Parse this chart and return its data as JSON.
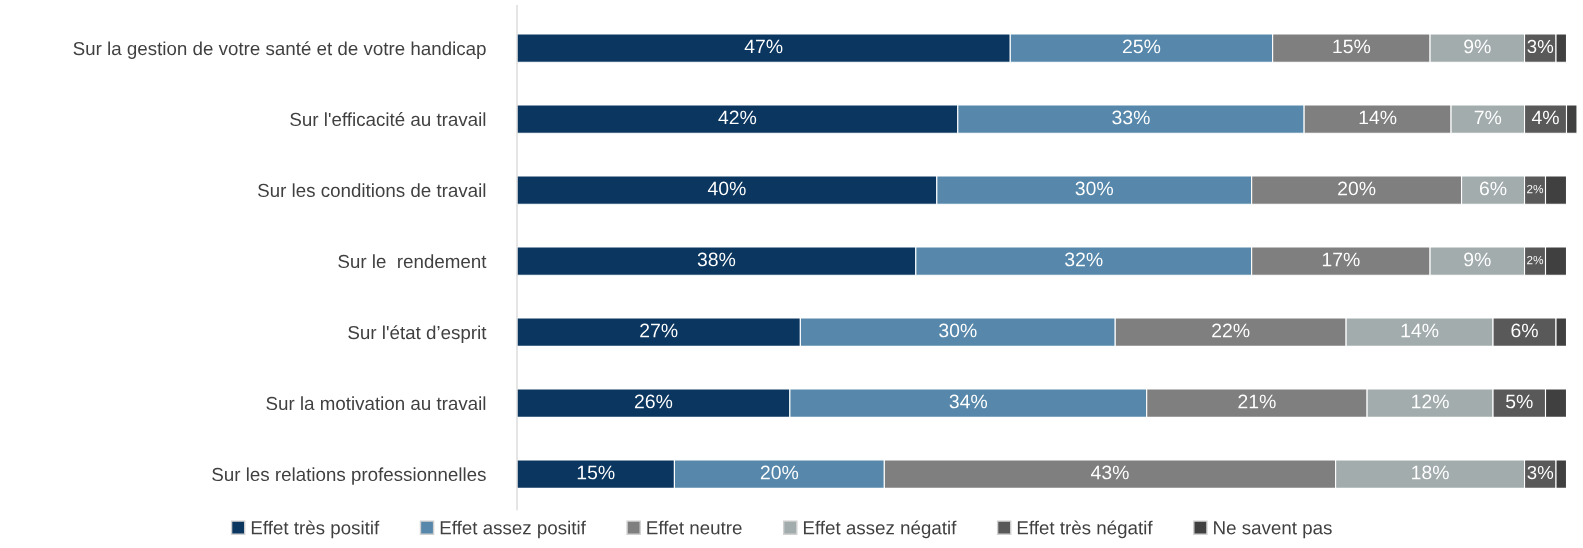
{
  "chart_data": {
    "type": "bar",
    "orientation": "horizontal",
    "stacked": true,
    "categories": [
      "Sur la gestion de votre santé et de votre handicap",
      "Sur l'efficacité au travail",
      "Sur les conditions de travail",
      "Sur le  rendement",
      "Sur l'état d’esprit",
      "Sur la motivation au travail",
      "Sur les relations professionnelles"
    ],
    "series": [
      {
        "name": "Effet très positif",
        "color": "#0b3660",
        "values": [
          47,
          42,
          40,
          38,
          27,
          26,
          15
        ],
        "value_labels": [
          "47%",
          "42%",
          "40%",
          "38%",
          "27%",
          "26%",
          "15%"
        ]
      },
      {
        "name": "Effet assez positif",
        "color": "#5788ab",
        "values": [
          25,
          33,
          30,
          32,
          30,
          34,
          20
        ],
        "value_labels": [
          "25%",
          "33%",
          "30%",
          "32%",
          "30%",
          "34%",
          "20%"
        ]
      },
      {
        "name": "Effet neutre",
        "color": "#7f7f7f",
        "values": [
          15,
          14,
          20,
          17,
          22,
          21,
          43
        ],
        "value_labels": [
          "15%",
          "14%",
          "20%",
          "17%",
          "22%",
          "21%",
          "43%"
        ]
      },
      {
        "name": "Effet assez négatif",
        "color": "#a3acad",
        "values": [
          9,
          7,
          6,
          9,
          14,
          12,
          18
        ],
        "value_labels": [
          "9%",
          "7%",
          "6%",
          "9%",
          "14%",
          "12%",
          "18%"
        ]
      },
      {
        "name": "Effet très négatif",
        "color": "#595959",
        "values": [
          3,
          4,
          2,
          2,
          6,
          5,
          3
        ],
        "value_labels": [
          "3%",
          "4%",
          "2%",
          "2%",
          "6%",
          "5%",
          "3%"
        ]
      },
      {
        "name": "Ne savent pas",
        "color": "#404040",
        "values": [
          1,
          1,
          2,
          2,
          1,
          2,
          1
        ]
      }
    ],
    "xlim": [
      0,
      101
    ],
    "tick_labels": "y",
    "legend": "bottom",
    "grid": false
  }
}
